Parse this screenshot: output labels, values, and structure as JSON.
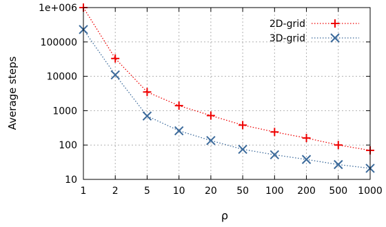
{
  "chart_data": {
    "type": "line",
    "title": "",
    "xlabel": "ρ",
    "ylabel": "Average steps",
    "categories": [
      "1",
      "2",
      "5",
      "10",
      "20",
      "50",
      "100",
      "200",
      "500",
      "1000"
    ],
    "yscale": "log",
    "ylim": [
      10,
      1000000
    ],
    "yticks": [
      {
        "value": 10,
        "label": "10"
      },
      {
        "value": 100,
        "label": "100"
      },
      {
        "value": 1000,
        "label": "1000"
      },
      {
        "value": 10000,
        "label": "10000"
      },
      {
        "value": 100000,
        "label": "100000"
      },
      {
        "value": 1000000,
        "label": "1e+006"
      }
    ],
    "grid": true,
    "legend_position": "top-right",
    "series": [
      {
        "name": "2D-grid",
        "color": "#ee0000",
        "marker": "plus",
        "line": "dotted",
        "values": [
          1000000,
          33000,
          3500,
          1400,
          720,
          380,
          240,
          160,
          100,
          70
        ]
      },
      {
        "name": "3D-grid",
        "color": "#3b6a9b",
        "marker": "cross",
        "line": "dotted",
        "values": [
          230000,
          11000,
          700,
          260,
          135,
          75,
          52,
          38,
          27,
          21
        ]
      }
    ]
  }
}
